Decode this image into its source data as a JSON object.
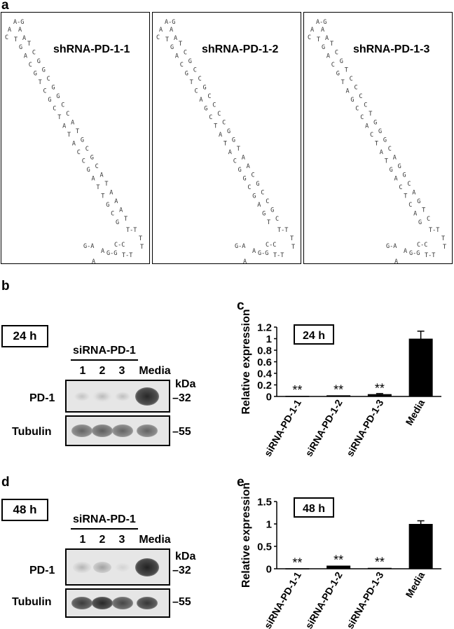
{
  "panel_a": {
    "letter": "a",
    "structures": [
      {
        "title": "shRNA-PD-1-1",
        "loop": [
          "A-G",
          "A",
          "A",
          "C",
          "T",
          "A"
        ],
        "pairs": [
          [
            "G",
            "T"
          ],
          [
            "A",
            "C"
          ],
          [
            "C",
            "G"
          ],
          [
            "G",
            "G"
          ],
          [
            "T",
            "C"
          ],
          [
            "C",
            "G"
          ],
          [
            "G",
            "G"
          ],
          [
            "C",
            "C"
          ],
          [
            "T",
            "C"
          ],
          [
            "A",
            "A"
          ],
          [
            "T",
            "T"
          ],
          [
            "A",
            "G"
          ],
          [
            "C",
            "C"
          ],
          [
            "C",
            "G"
          ],
          [
            "G",
            "C"
          ],
          [
            "A",
            "A"
          ],
          [
            "T",
            "T"
          ],
          [
            "T",
            "A"
          ],
          [
            "G",
            "A"
          ],
          [
            "C",
            "A"
          ],
          [
            "G",
            "T"
          ]
        ],
        "tail": [
          "T-T",
          "T",
          "T",
          "G-G",
          "T-T",
          "C-C",
          "A",
          "G-A",
          "A",
          "A"
        ]
      },
      {
        "title": "shRNA-PD-1-2",
        "loop": [
          "A-G",
          "A",
          "A",
          "C",
          "T",
          "A"
        ],
        "pairs": [
          [
            "G",
            "T"
          ],
          [
            "A",
            "C"
          ],
          [
            "C",
            "G"
          ],
          [
            "G",
            "C"
          ],
          [
            "T",
            "C"
          ],
          [
            "C",
            "G"
          ],
          [
            "A",
            "C"
          ],
          [
            "G",
            "C"
          ],
          [
            "C",
            "C"
          ],
          [
            "T",
            "C"
          ],
          [
            "A",
            "G"
          ],
          [
            "T",
            "G"
          ],
          [
            "A",
            "T"
          ],
          [
            "C",
            "A"
          ],
          [
            "G",
            "A"
          ],
          [
            "G",
            "C"
          ],
          [
            "C",
            "G"
          ],
          [
            "G",
            "C"
          ],
          [
            "A",
            "C"
          ],
          [
            "G",
            "G"
          ],
          [
            "T",
            "C"
          ]
        ],
        "tail": [
          "T-T",
          "T",
          "T",
          "G-G",
          "T-T",
          "C-C",
          "A",
          "G-A",
          "A",
          "A"
        ]
      },
      {
        "title": "shRNA-PD-1-3",
        "loop": [
          "A-G",
          "A",
          "A",
          "C",
          "T",
          "A"
        ],
        "pairs": [
          [
            "G",
            "T"
          ],
          [
            "A",
            "C"
          ],
          [
            "C",
            "G"
          ],
          [
            "G",
            "T"
          ],
          [
            "T",
            "C"
          ],
          [
            "A",
            "C"
          ],
          [
            "G",
            "C"
          ],
          [
            "C",
            "C"
          ],
          [
            "C",
            "T"
          ],
          [
            "A",
            "G"
          ],
          [
            "C",
            "G"
          ],
          [
            "T",
            "G"
          ],
          [
            "A",
            "C"
          ],
          [
            "T",
            "A"
          ],
          [
            "G",
            "G"
          ],
          [
            "A",
            "G"
          ],
          [
            "C",
            "C"
          ],
          [
            "T",
            "A"
          ],
          [
            "C",
            "G"
          ],
          [
            "A",
            "T"
          ],
          [
            "G",
            "C"
          ]
        ],
        "tail": [
          "T-T",
          "T",
          "T",
          "G-G",
          "T-T",
          "C-C",
          "A",
          "G-A",
          "A",
          "A"
        ]
      }
    ]
  },
  "panel_b": {
    "letter": "b",
    "time": "24 h",
    "group_label": "siRNA-PD-1",
    "lanes": [
      "1",
      "2",
      "3",
      "Media"
    ],
    "kda_label": "kDa",
    "rows": [
      {
        "label": "PD-1",
        "marker": "32",
        "intensities": [
          0.18,
          0.22,
          0.2,
          0.95
        ]
      },
      {
        "label": "Tubulin",
        "marker": "55",
        "intensities": [
          0.65,
          0.68,
          0.65,
          0.66
        ]
      }
    ]
  },
  "panel_d": {
    "letter": "d",
    "time": "48 h",
    "group_label": "siRNA-PD-1",
    "lanes": [
      "1",
      "2",
      "3",
      "Media"
    ],
    "kda_label": "kDa",
    "rows": [
      {
        "label": "PD-1",
        "marker": "32",
        "intensities": [
          0.25,
          0.35,
          0.1,
          0.98
        ]
      },
      {
        "label": "Tubulin",
        "marker": "55",
        "intensities": [
          0.85,
          0.95,
          0.8,
          0.88
        ]
      }
    ]
  },
  "chart_data": [
    {
      "panel": "c",
      "type": "bar",
      "title": "24 h",
      "ylabel": "Relative expression",
      "categories": [
        "siRNA-PD-1-1",
        "siRNA-PD-1-2",
        "siRNA-PD-1-3",
        "Media"
      ],
      "values": [
        0.01,
        0.02,
        0.04,
        1.0
      ],
      "errors": [
        0.0,
        0.0,
        0.01,
        0.13
      ],
      "annotations": [
        "**",
        "**",
        "**",
        ""
      ],
      "ylim": [
        0,
        1.2
      ],
      "yticks": [
        "0",
        "0.2",
        "0.4",
        "0.6",
        "0.8",
        "1",
        "1.2"
      ],
      "ytick_values": [
        0,
        0.2,
        0.4,
        0.6,
        0.8,
        1,
        1.2
      ]
    },
    {
      "panel": "e",
      "type": "bar",
      "title": "48 h",
      "ylabel": "Relative expression",
      "categories": [
        "siRNA-PD-1-1",
        "siRNA-PD-1-2",
        "siRNA-PD-1-3",
        "Media"
      ],
      "values": [
        0.01,
        0.07,
        0.02,
        1.0
      ],
      "errors": [
        0.0,
        0.0,
        0.0,
        0.07
      ],
      "annotations": [
        "**",
        "**",
        "**",
        ""
      ],
      "ylim": [
        0,
        1.5
      ],
      "yticks": [
        "0",
        "0.5",
        "1",
        "1.5"
      ],
      "ytick_values": [
        0,
        0.5,
        1,
        1.5
      ]
    }
  ]
}
